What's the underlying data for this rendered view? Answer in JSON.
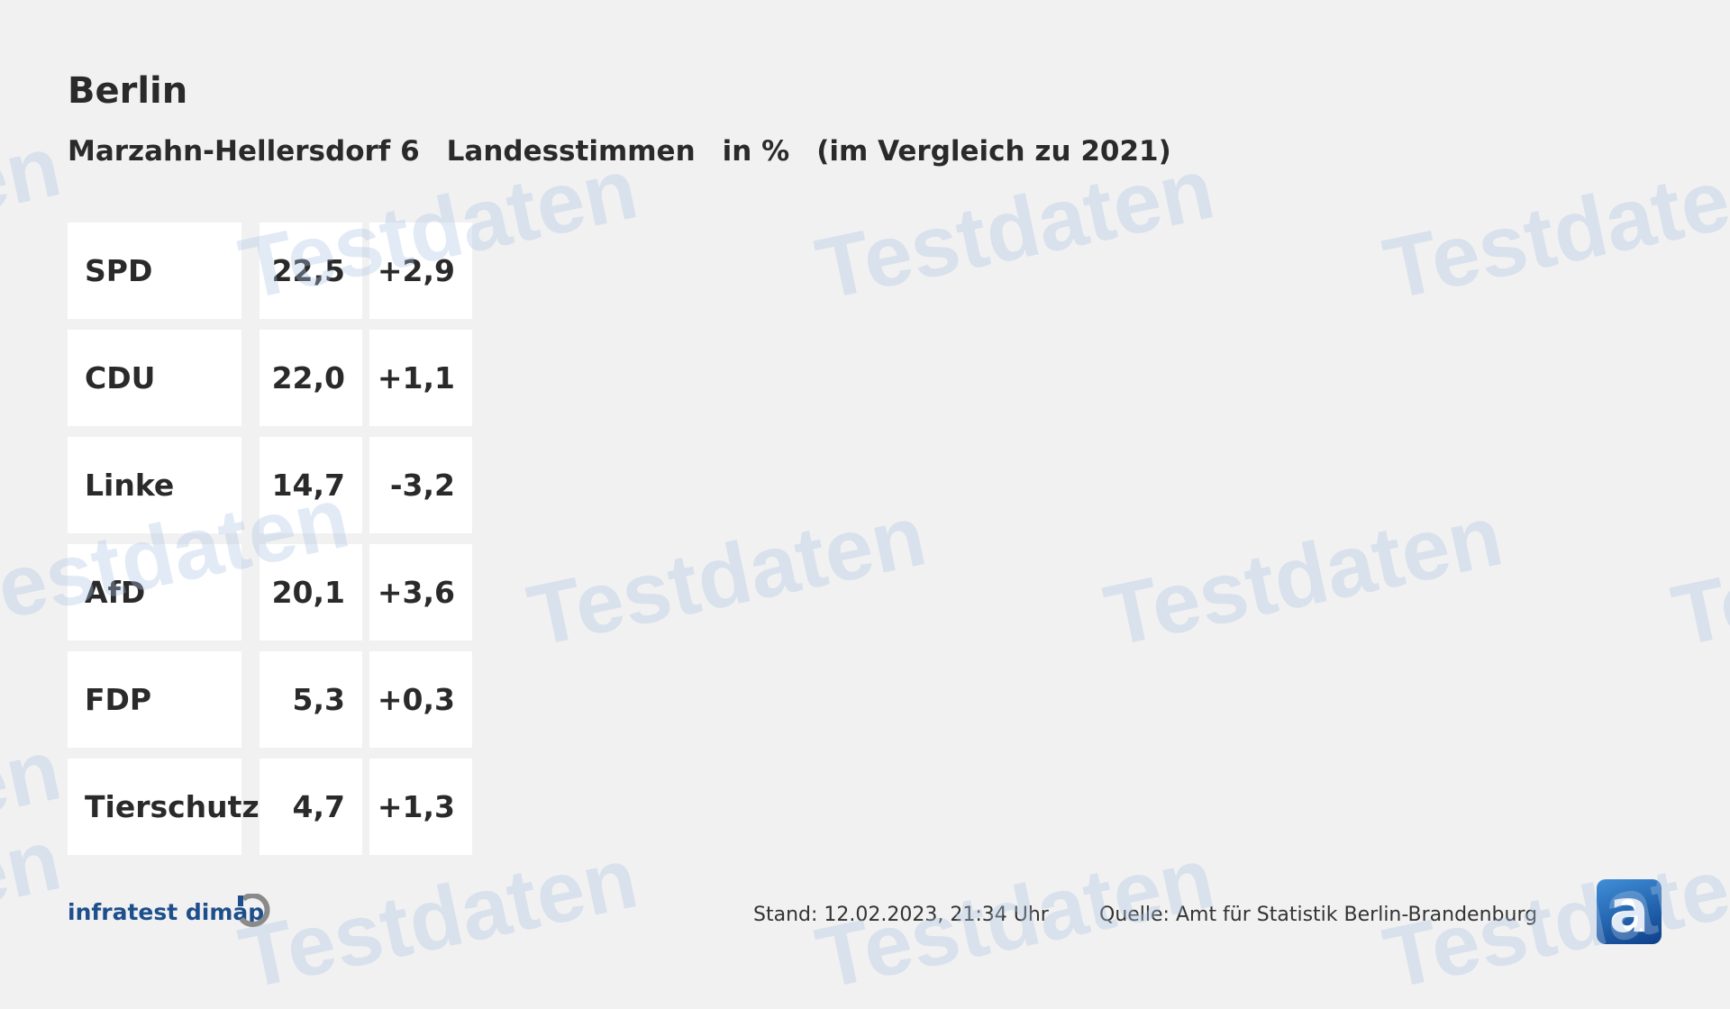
{
  "header": {
    "title": "Berlin",
    "subtitle": [
      "Marzahn-Hellersdorf 6",
      "Landesstimmen",
      "in %",
      "(im Vergleich zu 2021)"
    ]
  },
  "table": {
    "rows": [
      {
        "party": "SPD",
        "value": "22,5",
        "change": "+2,9"
      },
      {
        "party": "CDU",
        "value": "22,0",
        "change": "+1,1"
      },
      {
        "party": "Linke",
        "value": "14,7",
        "change": "-3,2"
      },
      {
        "party": "AfD",
        "value": "20,1",
        "change": "+3,6"
      },
      {
        "party": "FDP",
        "value": "5,3",
        "change": "+0,3"
      },
      {
        "party": "Tierschutz",
        "value": "4,7",
        "change": "+1,3"
      }
    ]
  },
  "footer": {
    "brand": "infratest dimap",
    "stand": "Stand:  12.02.2023, 21:34 Uhr",
    "source": "Quelle: Amt für Statistik Berlin-Brandenburg",
    "logo_letter": "a",
    "brand_icon": "infratest-ring-icon"
  },
  "watermark": "Testdaten",
  "colors": {
    "background": "#f1f1f1",
    "brand": "#1d4f8c",
    "watermark": "#aac3e1"
  }
}
